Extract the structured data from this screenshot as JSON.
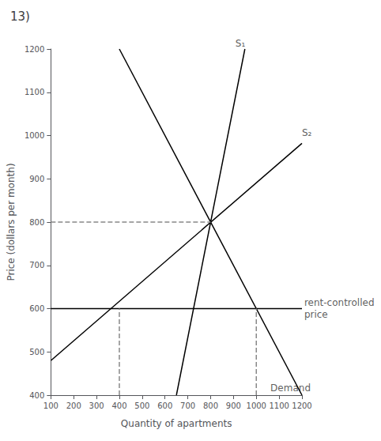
{
  "chart_data": {
    "type": "line",
    "title": "13)",
    "x_label": "Quantity of apartments",
    "y_label": "Price (dollars per month)",
    "xlim": [
      100,
      1200
    ],
    "ylim": [
      400,
      1200
    ],
    "xticks": [
      100,
      200,
      300,
      400,
      500,
      600,
      700,
      800,
      900,
      1000,
      1100,
      1200
    ],
    "yticks": [
      400,
      500,
      600,
      700,
      800,
      900,
      1000,
      1100,
      1200
    ],
    "grid": false,
    "tick_labels": true,
    "series": [
      {
        "color": "black",
        "line_style": "solid",
        "x": [
          650,
          800,
          950
        ],
        "values": [
          400,
          800,
          1200
        ]
      },
      {
        "color": "black",
        "line_style": "solid",
        "x": [
          100,
          1200
        ],
        "values": [
          480,
          982
        ]
      },
      {
        "color": "black",
        "line_style": "solid",
        "x": [
          400,
          1200
        ],
        "values": [
          1200,
          400
        ]
      },
      {
        "color": "black",
        "line_style": "solid",
        "x": [
          100,
          1200
        ],
        "values": [
          600,
          600
        ]
      },
      {
        "color": "#888888",
        "line_style": "dashed",
        "x": [
          100,
          800
        ],
        "values": [
          800,
          800
        ]
      },
      {
        "color": "#888888",
        "line_style": "dashed",
        "x": [
          400,
          400
        ],
        "values": [
          400,
          600
        ]
      },
      {
        "color": "#888888",
        "line_style": "dashed",
        "x": [
          1000,
          1000
        ],
        "values": [
          400,
          600
        ]
      }
    ],
    "annotations": [
      {
        "text": "S₁",
        "x": 930,
        "y": 1200
      },
      {
        "text": "S₂",
        "x": 1200,
        "y": 992
      },
      {
        "text": "Demand",
        "x": 1150,
        "y": 430
      },
      {
        "text": "rent-controlled\nprice",
        "x": 1210,
        "y": 600
      }
    ]
  }
}
